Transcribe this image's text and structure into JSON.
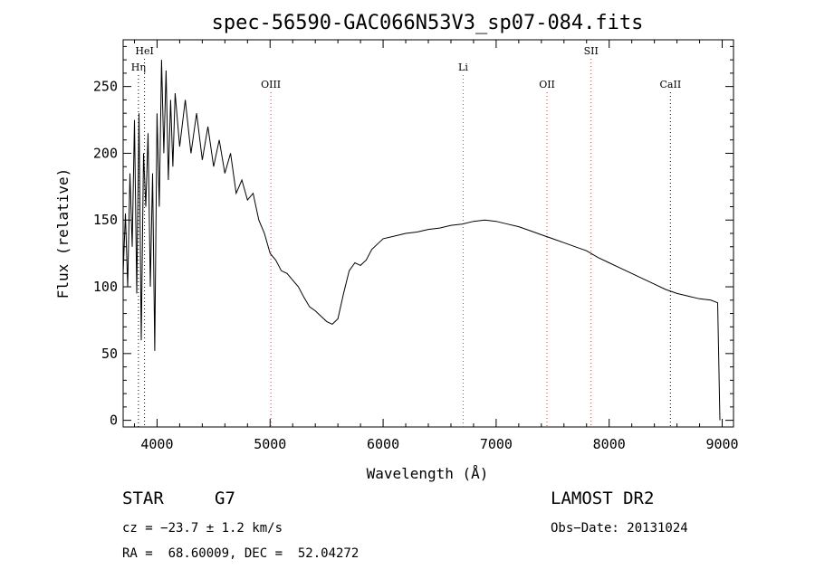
{
  "chart_data": {
    "type": "line",
    "title": "spec-56590-GAC066N53V3_sp07-084.fits",
    "xlabel": "Wavelength (Å)",
    "ylabel": "Flux (relative)",
    "xlim": [
      3700,
      9100
    ],
    "ylim": [
      -5,
      285
    ],
    "xticks": [
      4000,
      5000,
      6000,
      7000,
      8000,
      9000
    ],
    "yticks": [
      0,
      50,
      100,
      150,
      200,
      250
    ],
    "grid": false,
    "series": [
      {
        "points": [
          [
            3700,
            110
          ],
          [
            3720,
            155
          ],
          [
            3740,
            100
          ],
          [
            3760,
            185
          ],
          [
            3780,
            130
          ],
          [
            3800,
            225
          ],
          [
            3820,
            95
          ],
          [
            3840,
            230
          ],
          [
            3860,
            60
          ],
          [
            3880,
            200
          ],
          [
            3900,
            160
          ],
          [
            3920,
            215
          ],
          [
            3940,
            100
          ],
          [
            3960,
            185
          ],
          [
            3980,
            52
          ],
          [
            4000,
            230
          ],
          [
            4020,
            160
          ],
          [
            4040,
            270
          ],
          [
            4060,
            200
          ],
          [
            4080,
            262
          ],
          [
            4100,
            180
          ],
          [
            4120,
            240
          ],
          [
            4140,
            190
          ],
          [
            4160,
            245
          ],
          [
            4200,
            205
          ],
          [
            4250,
            240
          ],
          [
            4300,
            200
          ],
          [
            4350,
            230
          ],
          [
            4400,
            195
          ],
          [
            4450,
            220
          ],
          [
            4500,
            190
          ],
          [
            4550,
            210
          ],
          [
            4600,
            185
          ],
          [
            4650,
            200
          ],
          [
            4700,
            170
          ],
          [
            4750,
            180
          ],
          [
            4800,
            165
          ],
          [
            4850,
            170
          ],
          [
            4900,
            150
          ],
          [
            4950,
            140
          ],
          [
            5000,
            125
          ],
          [
            5050,
            120
          ],
          [
            5100,
            112
          ],
          [
            5150,
            110
          ],
          [
            5200,
            105
          ],
          [
            5250,
            100
          ],
          [
            5300,
            92
          ],
          [
            5350,
            85
          ],
          [
            5400,
            82
          ],
          [
            5450,
            78
          ],
          [
            5500,
            74
          ],
          [
            5550,
            72
          ],
          [
            5600,
            76
          ],
          [
            5650,
            95
          ],
          [
            5700,
            112
          ],
          [
            5750,
            118
          ],
          [
            5800,
            116
          ],
          [
            5850,
            120
          ],
          [
            5900,
            128
          ],
          [
            5950,
            132
          ],
          [
            6000,
            136
          ],
          [
            6100,
            138
          ],
          [
            6200,
            140
          ],
          [
            6300,
            141
          ],
          [
            6400,
            143
          ],
          [
            6500,
            144
          ],
          [
            6600,
            146
          ],
          [
            6700,
            147
          ],
          [
            6800,
            149
          ],
          [
            6900,
            150
          ],
          [
            7000,
            149
          ],
          [
            7100,
            147
          ],
          [
            7200,
            145
          ],
          [
            7300,
            142
          ],
          [
            7400,
            139
          ],
          [
            7500,
            136
          ],
          [
            7600,
            133
          ],
          [
            7700,
            130
          ],
          [
            7800,
            127
          ],
          [
            7900,
            122
          ],
          [
            8000,
            118
          ],
          [
            8100,
            114
          ],
          [
            8200,
            110
          ],
          [
            8300,
            106
          ],
          [
            8400,
            102
          ],
          [
            8500,
            98
          ],
          [
            8600,
            95
          ],
          [
            8700,
            93
          ],
          [
            8800,
            91
          ],
          [
            8900,
            90
          ],
          [
            8960,
            88
          ],
          [
            8980,
            0
          ]
        ]
      }
    ],
    "lines": [
      {
        "label": "Hη",
        "x": 3835,
        "color": "#000000",
        "row": 1
      },
      {
        "label": "HeI",
        "x": 3889,
        "color": "#000000",
        "row": 0
      },
      {
        "label": "OIII",
        "x": 5007,
        "color": "#e03a3a",
        "row": 2
      },
      {
        "label": "Li",
        "x": 6708,
        "color": "#e03a3a",
        "row": 1
      },
      {
        "label": "OII",
        "x": 7450,
        "color": "#e03a3a",
        "row": 2
      },
      {
        "label": "SII",
        "x": 7840,
        "color": "#e03a3a",
        "row": 0
      },
      {
        "label": "CaII",
        "x": 8542,
        "color": "#000000",
        "row": 2
      }
    ]
  },
  "info": {
    "class_label": "STAR",
    "subclass": "G7",
    "survey": "LAMOST DR2",
    "cz": "cz = −23.7 ± 1.2 km/s",
    "obs_date": "Obs−Date: 20131024",
    "radec": "RA =  68.60009, DEC =  52.04272"
  }
}
